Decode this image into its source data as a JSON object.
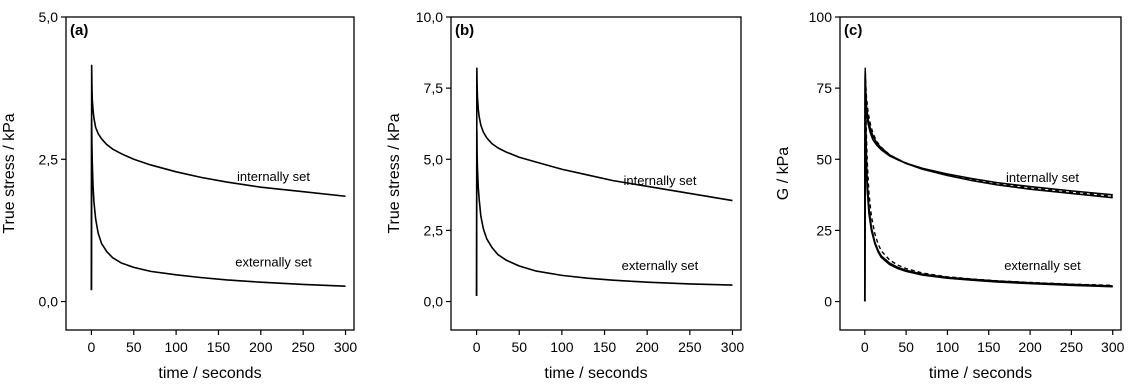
{
  "chart_data": [
    {
      "type": "line",
      "panel_label": "(a)",
      "xlabel": "time / seconds",
      "ylabel": "True stress / kPa",
      "xlim": [
        -30,
        310
      ],
      "ylim": [
        -0.5,
        5.0
      ],
      "xticks": [
        0,
        50,
        100,
        150,
        200,
        250,
        300
      ],
      "xtick_labels": [
        "0",
        "50",
        "100",
        "150",
        "200",
        "250",
        "300"
      ],
      "yticks": [
        0,
        2.5,
        5.0
      ],
      "ytick_labels": [
        "0,0",
        "2,5",
        "5,0"
      ],
      "grid": false,
      "annotations": [
        {
          "text": "internally set",
          "x": 215,
          "y": 2.12
        },
        {
          "text": "externally set",
          "x": 215,
          "y": 0.62
        }
      ],
      "series": [
        {
          "style": "solid",
          "x": [
            0,
            0.3,
            0.6,
            1,
            2,
            3,
            5,
            8,
            12,
            18,
            25,
            35,
            50,
            70,
            100,
            130,
            160,
            200,
            250,
            300
          ],
          "y": [
            0.2,
            4.15,
            3.8,
            3.55,
            3.35,
            3.22,
            3.06,
            2.95,
            2.86,
            2.76,
            2.68,
            2.6,
            2.5,
            2.4,
            2.28,
            2.18,
            2.1,
            2.01,
            1.93,
            1.85
          ]
        },
        {
          "style": "solid",
          "x": [
            0,
            0.3,
            0.6,
            1,
            2,
            3,
            5,
            8,
            12,
            18,
            25,
            35,
            50,
            70,
            100,
            130,
            160,
            200,
            250,
            300
          ],
          "y": [
            0.2,
            3.2,
            2.75,
            2.45,
            2.0,
            1.75,
            1.45,
            1.2,
            1.02,
            0.88,
            0.77,
            0.68,
            0.6,
            0.53,
            0.47,
            0.42,
            0.38,
            0.34,
            0.3,
            0.27
          ]
        }
      ]
    },
    {
      "type": "line",
      "panel_label": "(b)",
      "xlabel": "time / seconds",
      "ylabel": "True stress / kPa",
      "xlim": [
        -30,
        310
      ],
      "ylim": [
        -1.0,
        10.0
      ],
      "xticks": [
        0,
        50,
        100,
        150,
        200,
        250,
        300
      ],
      "xtick_labels": [
        "0",
        "50",
        "100",
        "150",
        "200",
        "250",
        "300"
      ],
      "yticks": [
        0,
        2.5,
        5.0,
        7.5,
        10.0
      ],
      "ytick_labels": [
        "0,0",
        "2,5",
        "5,0",
        "7,5",
        "10,0"
      ],
      "grid": false,
      "annotations": [
        {
          "text": "internally set",
          "x": 215,
          "y": 4.1
        },
        {
          "text": "externally set",
          "x": 215,
          "y": 1.1
        }
      ],
      "series": [
        {
          "style": "solid",
          "x": [
            0,
            0.3,
            0.6,
            1,
            2,
            3,
            5,
            8,
            12,
            18,
            25,
            35,
            50,
            70,
            100,
            130,
            160,
            200,
            250,
            300
          ],
          "y": [
            0.2,
            8.2,
            7.6,
            7.2,
            6.75,
            6.5,
            6.2,
            5.95,
            5.75,
            5.55,
            5.4,
            5.25,
            5.07,
            4.9,
            4.65,
            4.45,
            4.25,
            4.05,
            3.8,
            3.55
          ]
        },
        {
          "style": "solid",
          "x": [
            0,
            0.3,
            0.6,
            1,
            2,
            3,
            5,
            8,
            12,
            18,
            25,
            35,
            50,
            70,
            100,
            130,
            160,
            200,
            250,
            300
          ],
          "y": [
            0.2,
            6.0,
            5.2,
            4.7,
            4.0,
            3.6,
            3.0,
            2.55,
            2.2,
            1.9,
            1.65,
            1.45,
            1.25,
            1.07,
            0.92,
            0.82,
            0.75,
            0.68,
            0.62,
            0.58
          ]
        }
      ]
    },
    {
      "type": "line",
      "panel_label": "(c)",
      "xlabel": "time / seconds",
      "ylabel": "G / kPa",
      "xlim": [
        -30,
        310
      ],
      "ylim": [
        -10,
        100
      ],
      "xticks": [
        0,
        50,
        100,
        150,
        200,
        250,
        300
      ],
      "xtick_labels": [
        "0",
        "50",
        "100",
        "150",
        "200",
        "250",
        "300"
      ],
      "yticks": [
        0,
        25,
        50,
        75,
        100
      ],
      "ytick_labels": [
        "0",
        "25",
        "50",
        "75",
        "100"
      ],
      "grid": false,
      "annotations": [
        {
          "text": "internally set",
          "x": 215,
          "y": 42
        },
        {
          "text": "externally set",
          "x": 215,
          "y": 11
        }
      ],
      "series": [
        {
          "style": "solid",
          "x": [
            0,
            0.5,
            1,
            2,
            4,
            7,
            10,
            15,
            20,
            30,
            40,
            50,
            70,
            100,
            130,
            160,
            200,
            250,
            300
          ],
          "y": [
            0,
            81,
            75,
            69,
            64,
            60.5,
            58,
            55.5,
            54,
            51.5,
            50,
            48.5,
            46.5,
            44.3,
            42.5,
            41,
            39.5,
            38,
            36.5
          ]
        },
        {
          "style": "solid",
          "x": [
            0,
            0.5,
            1,
            2,
            4,
            7,
            10,
            15,
            20,
            30,
            40,
            50,
            70,
            100,
            130,
            160,
            200,
            250,
            300
          ],
          "y": [
            0,
            79,
            73,
            67,
            62.5,
            59,
            56.8,
            54.8,
            53.3,
            51.2,
            49.8,
            48.6,
            46.8,
            44.8,
            43.2,
            41.8,
            40.4,
            38.9,
            37.5
          ]
        },
        {
          "style": "dashed",
          "x": [
            0,
            0.5,
            1,
            2,
            4,
            7,
            10,
            15,
            20,
            30,
            40,
            50,
            70,
            100,
            130,
            160,
            200,
            250,
            300
          ],
          "y": [
            0,
            82,
            78,
            72,
            66.5,
            62,
            59,
            56,
            54.2,
            51.6,
            50,
            48.7,
            46.7,
            44.6,
            42.9,
            41.4,
            39.9,
            38.4,
            37
          ]
        },
        {
          "style": "solid",
          "x": [
            0,
            0.5,
            1,
            2,
            3,
            5,
            8,
            12,
            16,
            20,
            30,
            40,
            50,
            70,
            100,
            130,
            160,
            200,
            250,
            300
          ],
          "y": [
            0,
            80,
            66,
            50,
            42,
            33,
            26,
            21,
            18,
            16,
            13.5,
            12,
            11,
            9.6,
            8.5,
            7.8,
            7.2,
            6.6,
            6,
            5.5
          ]
        },
        {
          "style": "solid",
          "x": [
            0,
            0.5,
            1,
            2,
            3,
            5,
            8,
            12,
            16,
            20,
            30,
            40,
            50,
            70,
            100,
            130,
            160,
            200,
            250,
            300
          ],
          "y": [
            0,
            78,
            62,
            46,
            39,
            31,
            25,
            20.5,
            17.5,
            15.5,
            13,
            11.6,
            10.6,
            9.3,
            8.2,
            7.5,
            6.9,
            6.3,
            5.7,
            5.2
          ]
        },
        {
          "style": "dashed",
          "x": [
            0,
            0.5,
            1,
            2,
            3,
            5,
            8,
            12,
            16,
            20,
            30,
            40,
            50,
            70,
            100,
            130,
            160,
            200,
            250,
            300
          ],
          "y": [
            0,
            81,
            72,
            58,
            49,
            38,
            30,
            24,
            20.3,
            17.8,
            14.6,
            12.8,
            11.6,
            10,
            8.7,
            7.9,
            7.3,
            6.7,
            6.1,
            5.7
          ]
        }
      ]
    }
  ]
}
